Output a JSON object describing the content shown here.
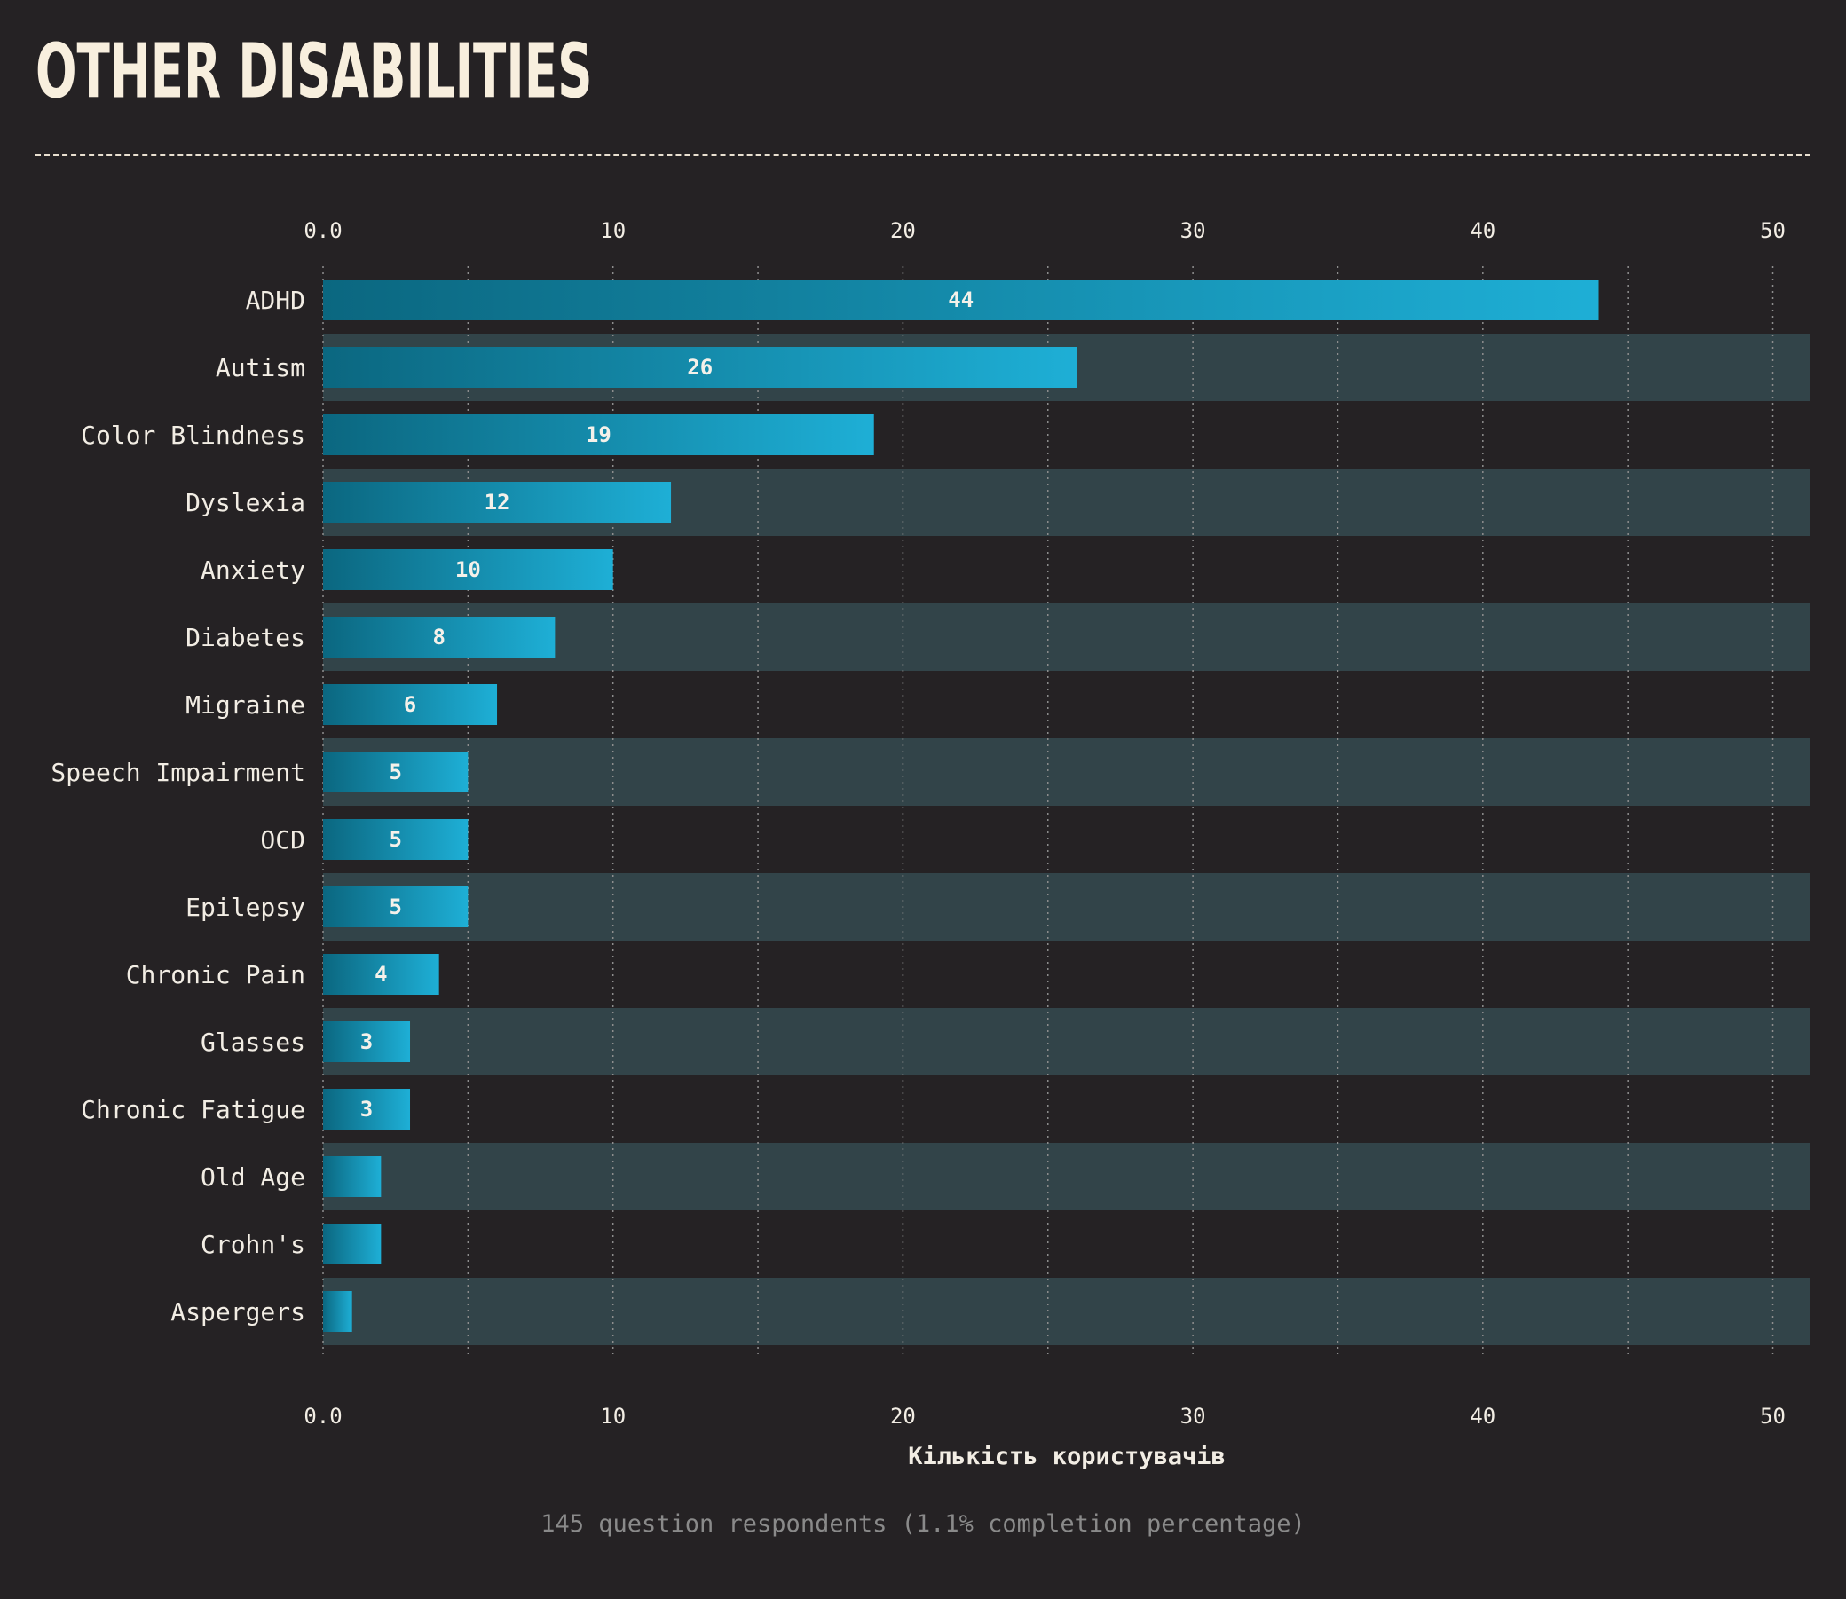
{
  "header": {
    "title": "OTHER DISABILITIES"
  },
  "footer": {
    "note": "145 question respondents (1.1% completion percentage)"
  },
  "chart_data": {
    "type": "bar",
    "orientation": "horizontal",
    "title": "OTHER DISABILITIES",
    "xlabel": "Кількість користувачів",
    "ylabel": "",
    "xlim": [
      0,
      51.3
    ],
    "xticks": [
      "0.0",
      "10",
      "20",
      "30",
      "40",
      "50"
    ],
    "grid": true,
    "categories": [
      "ADHD",
      "Autism",
      "Color Blindness",
      "Dyslexia",
      "Anxiety",
      "Diabetes",
      "Migraine",
      "Speech Impairment",
      "OCD",
      "Epilepsy",
      "Chronic Pain",
      "Glasses",
      "Chronic Fatigue",
      "Old Age",
      "Crohn's",
      "Aspergers"
    ],
    "values": [
      44,
      26,
      19,
      12,
      10,
      8,
      6,
      5,
      5,
      5,
      4,
      3,
      3,
      2,
      2,
      1
    ],
    "data_labels": [
      "44",
      "26",
      "19",
      "12",
      "10",
      "8",
      "6",
      "5",
      "5",
      "5",
      "4",
      "3",
      "3",
      "",
      "",
      ""
    ],
    "colors": {
      "bar_start": "#0b6780",
      "bar_end": "#1eafd6",
      "band": "#324449",
      "background": "#252224",
      "text": "#f2ede4",
      "grid": "#8e8e8e"
    }
  }
}
